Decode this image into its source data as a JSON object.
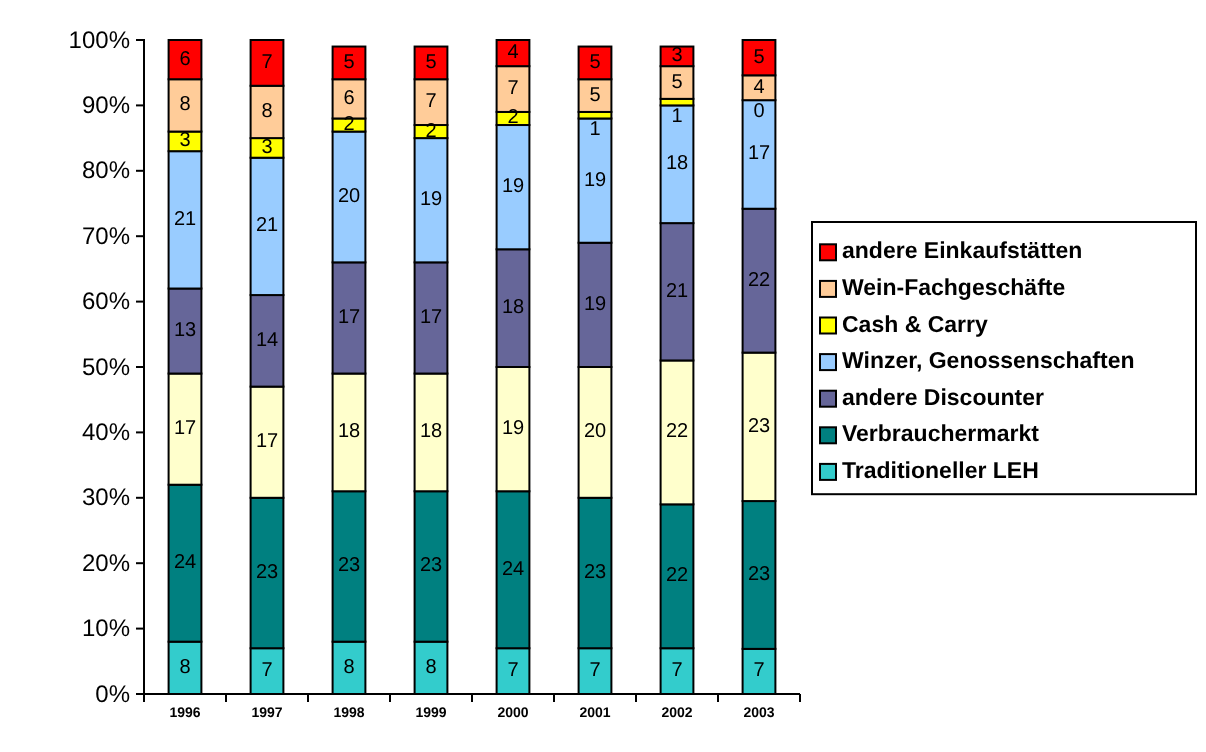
{
  "chart_data": {
    "type": "bar",
    "stacked": true,
    "categories": [
      "1996",
      "1997",
      "1998",
      "1999",
      "2000",
      "2001",
      "2002",
      "2003"
    ],
    "ylim": [
      0,
      100
    ],
    "yticks": [
      {
        "value": 0,
        "label": "0%"
      },
      {
        "value": 10,
        "label": "10%"
      },
      {
        "value": 20,
        "label": "20%"
      },
      {
        "value": 30,
        "label": "30%"
      },
      {
        "value": 40,
        "label": "40%"
      },
      {
        "value": 50,
        "label": "50%"
      },
      {
        "value": 60,
        "label": "60%"
      },
      {
        "value": 70,
        "label": "70%"
      },
      {
        "value": 80,
        "label": "80%"
      },
      {
        "value": 90,
        "label": "90%"
      },
      {
        "value": 100,
        "label": "100%"
      }
    ],
    "legend": "right",
    "grid": false,
    "series": [
      {
        "name": "Traditioneller LEH",
        "color": "#33cccc",
        "values": [
          8,
          7,
          8,
          8,
          7,
          7,
          7,
          6.9
        ],
        "value_labels": [
          "8",
          "7",
          "8",
          "8",
          "7",
          "7",
          "7",
          "7"
        ]
      },
      {
        "name": "Verbrauchermarkt",
        "color": "#008080",
        "values": [
          24,
          23,
          23,
          23,
          24,
          23,
          22,
          22.6
        ],
        "value_labels": [
          "24",
          "23",
          "23",
          "23",
          "24",
          "23",
          "22",
          "23"
        ]
      },
      {
        "color": "#ffffcc",
        "values": [
          17,
          17,
          18,
          18,
          19,
          20,
          22,
          22.7
        ],
        "value_labels": [
          "17",
          "17",
          "18",
          "18",
          "19",
          "20",
          "22",
          "23"
        ]
      },
      {
        "name": "andere Discounter",
        "color": "#666699",
        "values": [
          13,
          14,
          17,
          17,
          18,
          19,
          21,
          22
        ],
        "value_labels": [
          "13",
          "14",
          "17",
          "17",
          "18",
          "19",
          "21",
          "22"
        ]
      },
      {
        "name": "Winzer, Genossenschaften",
        "color": "#99ccff",
        "values": [
          21,
          21,
          20,
          19,
          19,
          19,
          18,
          16.6
        ],
        "value_labels": [
          "21",
          "21",
          "20",
          "19",
          "19",
          "19",
          "18",
          "17"
        ]
      },
      {
        "name": "Cash & Carry",
        "color": "#ffff00",
        "values": [
          3,
          3,
          2,
          2,
          2,
          1,
          1,
          0
        ],
        "value_labels": [
          "3",
          "3",
          "2",
          "2",
          "2",
          "1",
          "1",
          "0"
        ]
      },
      {
        "name": "Wein-Fachgeschäfte",
        "color": "#ffcc99",
        "values": [
          8,
          8,
          6,
          7,
          7,
          5,
          5,
          3.8
        ],
        "value_labels": [
          "8",
          "8",
          "6",
          "7",
          "7",
          "5",
          "5",
          "4"
        ]
      },
      {
        "name": "andere Einkaufstätten",
        "color": "#ff0000",
        "values": [
          6,
          7,
          5,
          5,
          4,
          5,
          3,
          5.4
        ],
        "value_labels": [
          "6",
          "7",
          "5",
          "5",
          "4",
          "5",
          "3",
          "5"
        ]
      }
    ]
  }
}
